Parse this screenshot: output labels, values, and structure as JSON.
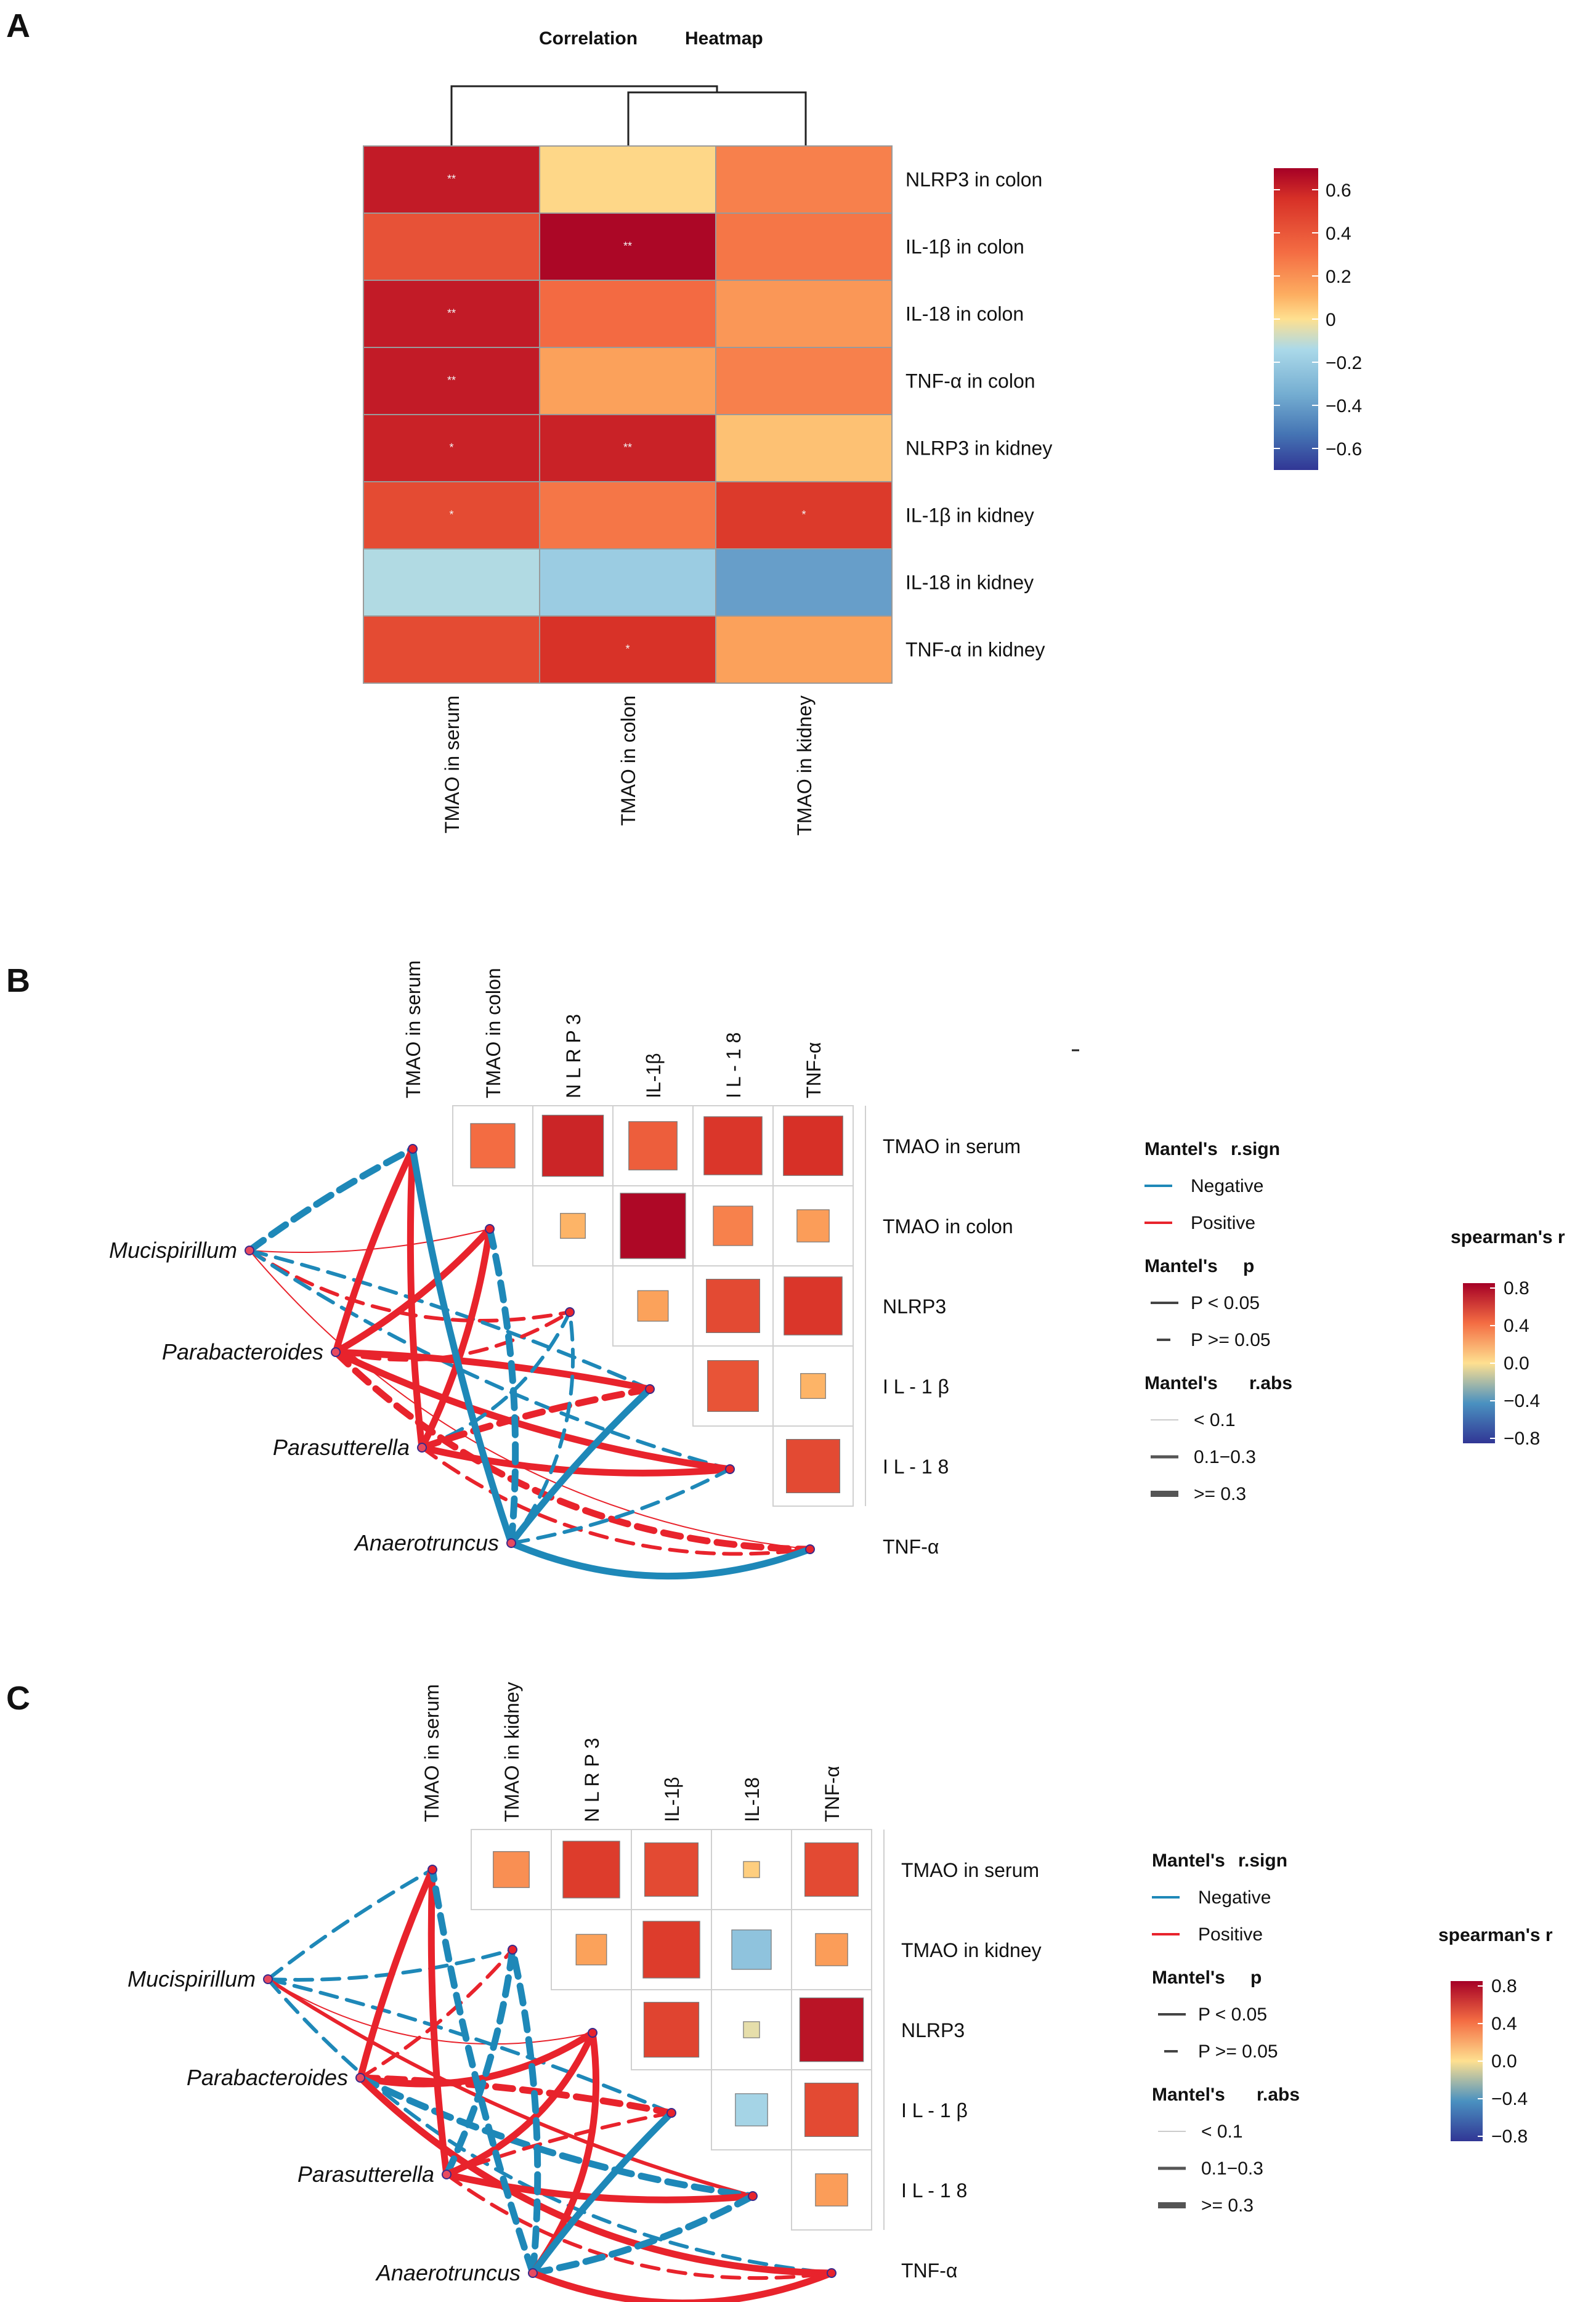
{
  "panels": {
    "A": {
      "label": "A",
      "title_left": "Correlation",
      "title_right": "Heatmap"
    },
    "B": {
      "label": "B"
    },
    "C": {
      "label": "C"
    }
  },
  "chart_data": [
    {
      "panel": "A",
      "type": "heatmap",
      "title": "Correlation Heatmap",
      "rows": [
        "NLRP3 in colon",
        "IL-1β  in colon",
        "IL-18 in colon",
        "TNF-α  in colon",
        "NLRP3  in kidney",
        "IL-1β  in  kidney",
        "IL-18 in kidney",
        "TNF-α  in  kidney"
      ],
      "columns": [
        "TMAO in serum",
        "TMAO  in  colon",
        "TMAO in kidney"
      ],
      "values": [
        [
          0.62,
          0.02,
          0.25
        ],
        [
          0.42,
          0.68,
          0.28
        ],
        [
          0.62,
          0.32,
          0.18
        ],
        [
          0.62,
          0.15,
          0.25
        ],
        [
          0.6,
          0.6,
          0.07
        ],
        [
          0.45,
          0.28,
          0.52
        ],
        [
          -0.13,
          -0.2,
          -0.4
        ],
        [
          0.45,
          0.55,
          0.15
        ]
      ],
      "significance": [
        [
          "**",
          "",
          ""
        ],
        [
          "",
          "**",
          ""
        ],
        [
          "**",
          "",
          ""
        ],
        [
          "**",
          "",
          ""
        ],
        [
          "*",
          "**",
          ""
        ],
        [
          "*",
          "",
          "*"
        ],
        [
          "",
          "",
          ""
        ],
        [
          "",
          "*",
          ""
        ]
      ],
      "colorbar": {
        "range": [
          -0.7,
          0.7
        ],
        "ticks": [
          "0.6",
          "0.4",
          "0.2",
          "0",
          "−0.2",
          "−0.4",
          "−0.6"
        ]
      },
      "dendrogram": "columns"
    },
    {
      "panel": "B",
      "type": "heatmap",
      "subtype": "mantel-correlation-network",
      "column_labels": [
        "TMAO in serum",
        "TMAO  in  colon",
        "N L R P 3",
        "IL-1β",
        "I L - 1 8",
        "TNF-α"
      ],
      "row_labels": [
        "TMAO in serum",
        "TMAO  in  colon",
        "NLRP3",
        "I L - 1 β",
        "I L - 1 8",
        "TNF-α"
      ],
      "matrix": [
        [
          null,
          0.38,
          0.72,
          0.45,
          0.65,
          0.68
        ],
        [
          null,
          null,
          0.12,
          0.82,
          0.3,
          0.2
        ],
        [
          null,
          null,
          null,
          0.18,
          0.55,
          0.65
        ],
        [
          null,
          null,
          null,
          null,
          0.5,
          0.12
        ],
        [
          null,
          null,
          null,
          null,
          null,
          0.55
        ]
      ],
      "taxa": [
        "Mucispirillum",
        "Parabacteroides",
        "Parasutterella",
        "Anaerotruncus"
      ],
      "links": [
        {
          "taxon": 0,
          "var": 0,
          "sign": "Negative",
          "p": "P >= 0.05",
          "r": ">= 0.3"
        },
        {
          "taxon": 0,
          "var": 1,
          "sign": "Positive",
          "p": "P < 0.05",
          "r": "< 0.1"
        },
        {
          "taxon": 0,
          "var": 2,
          "sign": "Positive",
          "p": "P >= 0.05",
          "r": "0.1-0.3"
        },
        {
          "taxon": 0,
          "var": 3,
          "sign": "Negative",
          "p": "P >= 0.05",
          "r": "0.1-0.3"
        },
        {
          "taxon": 0,
          "var": 4,
          "sign": "Negative",
          "p": "P >= 0.05",
          "r": "0.1-0.3"
        },
        {
          "taxon": 0,
          "var": 5,
          "sign": "Positive",
          "p": "P < 0.05",
          "r": "< 0.1"
        },
        {
          "taxon": 1,
          "var": 0,
          "sign": "Positive",
          "p": "P < 0.05",
          "r": ">= 0.3"
        },
        {
          "taxon": 1,
          "var": 1,
          "sign": "Positive",
          "p": "P < 0.05",
          "r": ">= 0.3"
        },
        {
          "taxon": 1,
          "var": 2,
          "sign": "Positive",
          "p": "P >= 0.05",
          "r": "0.1-0.3"
        },
        {
          "taxon": 1,
          "var": 3,
          "sign": "Positive",
          "p": "P < 0.05",
          "r": ">= 0.3"
        },
        {
          "taxon": 1,
          "var": 4,
          "sign": "Positive",
          "p": "P < 0.05",
          "r": ">= 0.3"
        },
        {
          "taxon": 1,
          "var": 5,
          "sign": "Positive",
          "p": "P >= 0.05",
          "r": ">= 0.3"
        },
        {
          "taxon": 2,
          "var": 0,
          "sign": "Positive",
          "p": "P < 0.05",
          "r": ">= 0.3"
        },
        {
          "taxon": 2,
          "var": 1,
          "sign": "Positive",
          "p": "P < 0.05",
          "r": ">= 0.3"
        },
        {
          "taxon": 2,
          "var": 2,
          "sign": "Negative",
          "p": "P >= 0.05",
          "r": "0.1-0.3"
        },
        {
          "taxon": 2,
          "var": 3,
          "sign": "Positive",
          "p": "P >= 0.05",
          "r": ">= 0.3"
        },
        {
          "taxon": 2,
          "var": 4,
          "sign": "Positive",
          "p": "P < 0.05",
          "r": ">= 0.3"
        },
        {
          "taxon": 2,
          "var": 5,
          "sign": "Positive",
          "p": "P >= 0.05",
          "r": "0.1-0.3"
        },
        {
          "taxon": 3,
          "var": 0,
          "sign": "Negative",
          "p": "P < 0.05",
          "r": ">= 0.3"
        },
        {
          "taxon": 3,
          "var": 1,
          "sign": "Negative",
          "p": "P >= 0.05",
          "r": ">= 0.3"
        },
        {
          "taxon": 3,
          "var": 2,
          "sign": "Negative",
          "p": "P >= 0.05",
          "r": "0.1-0.3"
        },
        {
          "taxon": 3,
          "var": 3,
          "sign": "Negative",
          "p": "P < 0.05",
          "r": ">= 0.3"
        },
        {
          "taxon": 3,
          "var": 4,
          "sign": "Negative",
          "p": "P >= 0.05",
          "r": "0.1-0.3"
        },
        {
          "taxon": 3,
          "var": 5,
          "sign": "Negative",
          "p": "P < 0.05",
          "r": ">= 0.3"
        }
      ],
      "legend": {
        "sign_title_a": "Mantel's",
        "sign_title_b": "r.sign",
        "sign_items": [
          "Negative",
          "Positive"
        ],
        "p_title_a": "Mantel's",
        "p_title_b": "p",
        "p_items": [
          "P  <  0.05",
          "P  >=  0.05"
        ],
        "r_title_a": "Mantel's",
        "r_title_b": "r.abs",
        "r_items": [
          "<  0.1",
          "0.1−0.3",
          ">=   0.3"
        ],
        "colorbar_title": "spearman's r",
        "colorbar_ticks": [
          "0.8",
          "0.4",
          "0.0",
          "−0.4",
          "−0.8"
        ]
      }
    },
    {
      "panel": "C",
      "type": "heatmap",
      "subtype": "mantel-correlation-network",
      "column_labels": [
        "TMAO in serum",
        "TMAO in kidney",
        "N L R P 3",
        "IL-1β",
        "IL-18",
        "TNF-α"
      ],
      "row_labels": [
        "TMAO in serum",
        "TMAO in kidney",
        "NLRP3",
        "I L - 1 β",
        "I L - 1 8",
        "TNF-α"
      ],
      "matrix": [
        [
          null,
          0.25,
          0.62,
          0.55,
          0.05,
          0.55
        ],
        [
          null,
          null,
          0.18,
          0.62,
          -0.3,
          0.2
        ],
        [
          null,
          null,
          null,
          0.58,
          -0.05,
          0.78
        ],
        [
          null,
          null,
          null,
          null,
          -0.2,
          0.55
        ],
        [
          null,
          null,
          null,
          null,
          null,
          0.2
        ]
      ],
      "taxa": [
        "Mucispirillum",
        "Parabacteroides",
        "Parasutterella",
        "Anaerotruncus"
      ],
      "links": [
        {
          "taxon": 0,
          "var": 0,
          "sign": "Negative",
          "p": "P >= 0.05",
          "r": "0.1-0.3"
        },
        {
          "taxon": 0,
          "var": 1,
          "sign": "Negative",
          "p": "P >= 0.05",
          "r": "0.1-0.3"
        },
        {
          "taxon": 0,
          "var": 2,
          "sign": "Positive",
          "p": "P < 0.05",
          "r": "< 0.1"
        },
        {
          "taxon": 0,
          "var": 3,
          "sign": "Negative",
          "p": "P >= 0.05",
          "r": "0.1-0.3"
        },
        {
          "taxon": 0,
          "var": 4,
          "sign": "Positive",
          "p": "P < 0.05",
          "r": "0.1-0.3"
        },
        {
          "taxon": 0,
          "var": 5,
          "sign": "Negative",
          "p": "P >= 0.05",
          "r": "0.1-0.3"
        },
        {
          "taxon": 1,
          "var": 0,
          "sign": "Positive",
          "p": "P < 0.05",
          "r": ">= 0.3"
        },
        {
          "taxon": 1,
          "var": 1,
          "sign": "Positive",
          "p": "P >= 0.05",
          "r": "0.1-0.3"
        },
        {
          "taxon": 1,
          "var": 2,
          "sign": "Positive",
          "p": "P < 0.05",
          "r": ">= 0.3"
        },
        {
          "taxon": 1,
          "var": 3,
          "sign": "Positive",
          "p": "P >= 0.05",
          "r": ">= 0.3"
        },
        {
          "taxon": 1,
          "var": 4,
          "sign": "Negative",
          "p": "P >= 0.05",
          "r": ">= 0.3"
        },
        {
          "taxon": 1,
          "var": 5,
          "sign": "Positive",
          "p": "P < 0.05",
          "r": ">= 0.3"
        },
        {
          "taxon": 2,
          "var": 0,
          "sign": "Positive",
          "p": "P < 0.05",
          "r": ">= 0.3"
        },
        {
          "taxon": 2,
          "var": 1,
          "sign": "Negative",
          "p": "P >= 0.05",
          "r": ">= 0.3"
        },
        {
          "taxon": 2,
          "var": 2,
          "sign": "Positive",
          "p": "P < 0.05",
          "r": ">= 0.3"
        },
        {
          "taxon": 2,
          "var": 3,
          "sign": "Positive",
          "p": "P >= 0.05",
          "r": "0.1-0.3"
        },
        {
          "taxon": 2,
          "var": 4,
          "sign": "Positive",
          "p": "P < 0.05",
          "r": ">= 0.3"
        },
        {
          "taxon": 2,
          "var": 5,
          "sign": "Positive",
          "p": "P >= 0.05",
          "r": "0.1-0.3"
        },
        {
          "taxon": 3,
          "var": 0,
          "sign": "Negative",
          "p": "P >= 0.05",
          "r": ">= 0.3"
        },
        {
          "taxon": 3,
          "var": 1,
          "sign": "Negative",
          "p": "P >= 0.05",
          "r": ">= 0.3"
        },
        {
          "taxon": 3,
          "var": 2,
          "sign": "Positive",
          "p": "P < 0.05",
          "r": ">= 0.3"
        },
        {
          "taxon": 3,
          "var": 3,
          "sign": "Negative",
          "p": "P < 0.05",
          "r": ">= 0.3"
        },
        {
          "taxon": 3,
          "var": 4,
          "sign": "Negative",
          "p": "P >= 0.05",
          "r": ">= 0.3"
        },
        {
          "taxon": 3,
          "var": 5,
          "sign": "Positive",
          "p": "P < 0.05",
          "r": ">= 0.3"
        }
      ],
      "legend": {
        "sign_title_a": "Mantel's",
        "sign_title_b": "r.sign",
        "sign_items": [
          "Negative",
          "Positive"
        ],
        "p_title_a": "Mantel's",
        "p_title_b": "p",
        "p_items": [
          "P  <  0.05",
          "P  >=  0.05"
        ],
        "r_title_a": "Mantel's",
        "r_title_b": "r.abs",
        "r_items": [
          "<  0.1",
          "0.1−0.3",
          ">=   0.3"
        ],
        "colorbar_title": "spearman's r",
        "colorbar_ticks": [
          "0.8",
          "0.4",
          "0.0",
          "−0.4",
          "−0.8"
        ]
      }
    }
  ]
}
